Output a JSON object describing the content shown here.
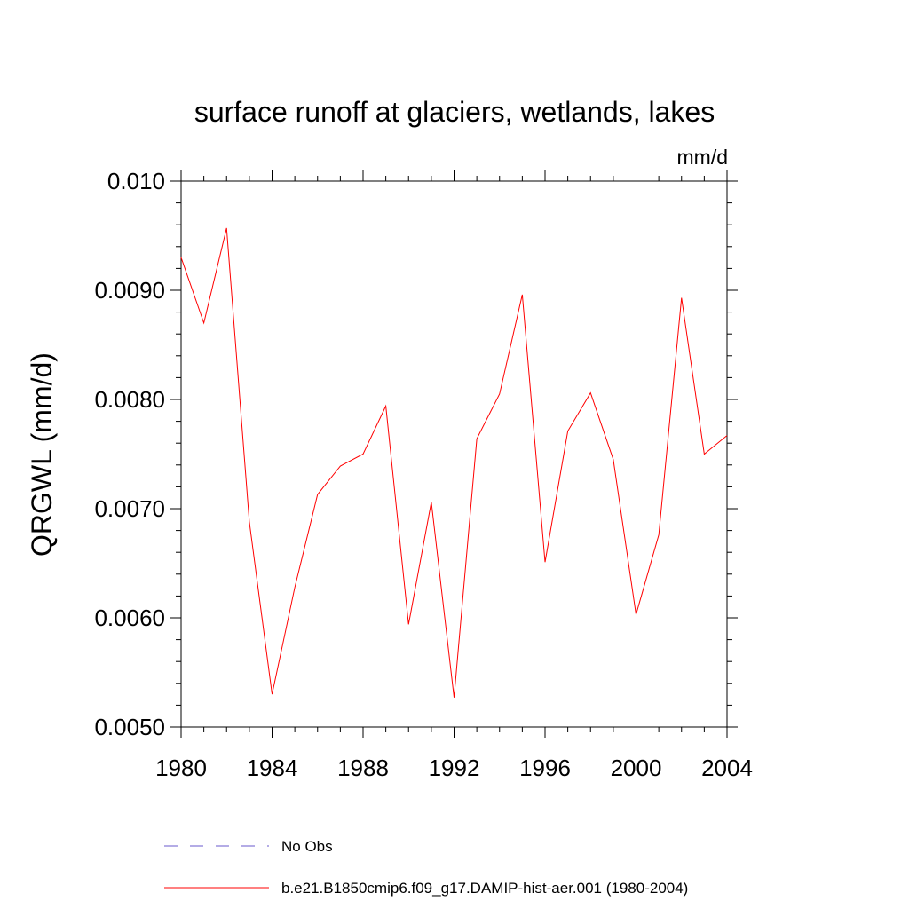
{
  "chart_data": {
    "type": "line",
    "title": "surface runoff at glaciers, wetlands, lakes",
    "units_label": "mm/d",
    "ylabel": "QRGWL  (mm/d)",
    "xlabel": "",
    "xlim": [
      1980,
      2004
    ],
    "ylim": [
      0.005,
      0.01
    ],
    "x_ticks": [
      1980,
      1984,
      1988,
      1992,
      1996,
      2000,
      2004
    ],
    "x_tick_labels": [
      "1980",
      "1984",
      "1988",
      "1992",
      "1996",
      "2000",
      "2004"
    ],
    "y_ticks": [
      0.005,
      0.006,
      0.007,
      0.008,
      0.009,
      0.01
    ],
    "y_tick_labels": [
      "0.0050",
      "0.0060",
      "0.0070",
      "0.0080",
      "0.0090",
      "0.010"
    ],
    "grid": false,
    "legend_position": "bottom",
    "series": [
      {
        "name": "b.e21.B1850cmip6.f09_g17.DAMIP-hist-aer.001 (1980-2004)",
        "color": "#ff0000",
        "x": [
          1980,
          1981,
          1982,
          1983,
          1984,
          1985,
          1986,
          1987,
          1988,
          1989,
          1990,
          1991,
          1992,
          1993,
          1994,
          1995,
          1996,
          1997,
          1998,
          1999,
          2000,
          2001,
          2002,
          2003,
          2004
        ],
        "values": [
          0.0093,
          0.0087,
          0.00957,
          0.00688,
          0.0053,
          0.00628,
          0.00713,
          0.00739,
          0.0075,
          0.00794,
          0.00594,
          0.00706,
          0.00527,
          0.00764,
          0.00805,
          0.00896,
          0.00651,
          0.00771,
          0.00806,
          0.00745,
          0.00603,
          0.00676,
          0.00893,
          0.0075,
          0.00767
        ]
      }
    ],
    "legend": [
      {
        "label": "No Obs",
        "color": "#6a5acd",
        "dash": true
      },
      {
        "label": "b.e21.B1850cmip6.f09_g17.DAMIP-hist-aer.001 (1980-2004)",
        "color": "#ff0000",
        "dash": false
      }
    ]
  }
}
